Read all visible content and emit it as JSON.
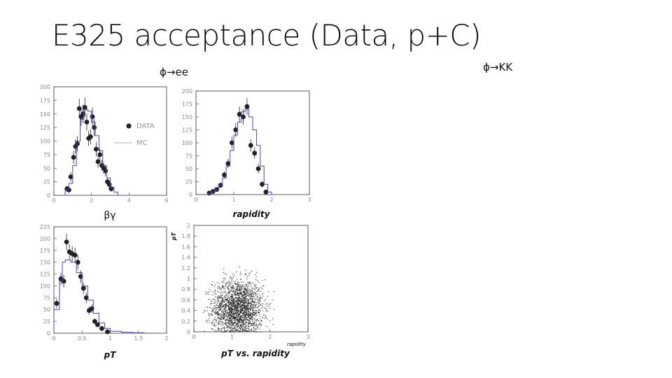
{
  "title": "E325 acceptance (Data, p+C)",
  "sub_labels": {
    "ee": "ϕ→ee",
    "kk": "ϕ→KK"
  },
  "legend": {
    "data": "DATA",
    "mc": "MC"
  },
  "colors": {
    "mc_line": "#4646c8",
    "marker": "#222222",
    "frame": "#333333",
    "scatter": "#222222"
  },
  "chart_data": [
    {
      "id": "betagamma",
      "type": "scatter",
      "xlabel": "βγ",
      "ylabel": "",
      "xlim": [
        0,
        6
      ],
      "ylim": [
        0,
        200
      ],
      "xticks": [
        0,
        2,
        4,
        6
      ],
      "yticks": [
        0,
        25,
        50,
        75,
        100,
        125,
        150,
        175,
        200
      ],
      "legend_position": "right",
      "series": [
        {
          "name": "DATA",
          "kind": "points",
          "x": [
            0.7,
            0.8,
            0.9,
            1.05,
            1.15,
            1.25,
            1.35,
            1.45,
            1.55,
            1.65,
            1.75,
            1.85,
            1.95,
            2.05,
            2.15,
            2.25,
            2.35,
            2.45,
            2.55,
            2.65,
            2.75,
            2.85,
            2.95,
            3.05
          ],
          "y": [
            12,
            10,
            34,
            70,
            90,
            95,
            160,
            145,
            150,
            162,
            135,
            105,
            108,
            145,
            125,
            85,
            62,
            75,
            55,
            50,
            45,
            25,
            20,
            12
          ],
          "err": [
            6,
            6,
            9,
            12,
            13,
            14,
            18,
            17,
            17,
            18,
            16,
            14,
            14,
            17,
            16,
            13,
            11,
            12,
            10,
            10,
            9,
            7,
            6,
            5
          ]
        },
        {
          "name": "MC",
          "kind": "step",
          "x": [
            0.6,
            0.8,
            1.0,
            1.2,
            1.4,
            1.6,
            1.8,
            2.0,
            2.2,
            2.4,
            2.6,
            2.8,
            3.0,
            3.2,
            3.4
          ],
          "y": [
            10,
            22,
            55,
            100,
            140,
            158,
            155,
            135,
            110,
            82,
            55,
            32,
            15,
            6,
            0
          ]
        }
      ]
    },
    {
      "id": "rapidity",
      "type": "scatter",
      "xlabel": "rapidity",
      "ylabel": "",
      "xlim": [
        0,
        3
      ],
      "ylim": [
        0,
        200
      ],
      "xticks": [
        0,
        1,
        2,
        3
      ],
      "yticks": [
        0,
        25,
        50,
        75,
        100,
        125,
        150,
        175,
        200
      ],
      "series": [
        {
          "name": "DATA",
          "kind": "points",
          "x": [
            0.35,
            0.45,
            0.55,
            0.65,
            0.75,
            0.85,
            0.95,
            1.05,
            1.15,
            1.25,
            1.35,
            1.45,
            1.55,
            1.65,
            1.75,
            1.85
          ],
          "y": [
            3,
            6,
            10,
            18,
            38,
            60,
            100,
            125,
            155,
            150,
            170,
            95,
            80,
            50,
            20,
            5
          ],
          "err": [
            2,
            3,
            4,
            5,
            7,
            9,
            12,
            13,
            15,
            15,
            16,
            12,
            11,
            9,
            6,
            3
          ]
        },
        {
          "name": "MC",
          "kind": "step",
          "x": [
            0.3,
            0.4,
            0.5,
            0.6,
            0.7,
            0.8,
            0.9,
            1.0,
            1.1,
            1.2,
            1.3,
            1.4,
            1.5,
            1.6,
            1.7,
            1.8,
            1.9,
            2.0
          ],
          "y": [
            2,
            5,
            9,
            18,
            32,
            55,
            85,
            115,
            140,
            160,
            165,
            150,
            125,
            95,
            55,
            20,
            5,
            0
          ]
        }
      ]
    },
    {
      "id": "pt",
      "type": "scatter",
      "xlabel": "pT",
      "ylabel": "",
      "xlim": [
        0,
        2
      ],
      "ylim": [
        0,
        225
      ],
      "xticks": [
        0,
        0.5,
        1,
        1.5,
        2
      ],
      "yticks": [
        0,
        25,
        50,
        75,
        100,
        125,
        150,
        175,
        200,
        225
      ],
      "series": [
        {
          "name": "DATA",
          "kind": "points",
          "x": [
            0.05,
            0.125,
            0.175,
            0.225,
            0.275,
            0.325,
            0.375,
            0.425,
            0.475,
            0.525,
            0.575,
            0.625,
            0.675,
            0.725,
            0.775,
            0.85,
            0.95
          ],
          "y": [
            63,
            115,
            110,
            193,
            172,
            168,
            165,
            150,
            120,
            95,
            75,
            48,
            52,
            25,
            18,
            10,
            3
          ],
          "err": [
            10,
            13,
            13,
            17,
            16,
            16,
            16,
            15,
            13,
            12,
            11,
            9,
            9,
            6,
            5,
            4,
            2
          ]
        },
        {
          "name": "MC",
          "kind": "step",
          "x": [
            0.0,
            0.1,
            0.15,
            0.2,
            0.3,
            0.4,
            0.5,
            0.6,
            0.7,
            0.8,
            0.9,
            1.0,
            1.2,
            1.4,
            1.6
          ],
          "y": [
            50,
            110,
            150,
            155,
            150,
            128,
            100,
            70,
            42,
            22,
            10,
            4,
            2,
            1,
            0
          ]
        }
      ]
    },
    {
      "id": "pt-vs-rapidity",
      "type": "scatter",
      "xlabel": "pT vs. rapidity",
      "x_axis_name": "rapidity",
      "ylabel": "pT",
      "xlim": [
        0,
        3
      ],
      "ylim": [
        0,
        2
      ],
      "xticks": [
        0,
        1,
        2,
        3
      ],
      "yticks": [
        0,
        0.2,
        0.4,
        0.6,
        0.8,
        1,
        1.2,
        1.4,
        1.6,
        1.8,
        2
      ],
      "series": [
        {
          "name": "DATA",
          "kind": "density",
          "x_center": 1.15,
          "x_sigma": 0.33,
          "y_center": 0.45,
          "y_sigma": 0.27,
          "x_range": [
            0.2,
            2.1
          ],
          "y_range": [
            0.0,
            1.25
          ],
          "n_points": 2200
        }
      ]
    }
  ]
}
